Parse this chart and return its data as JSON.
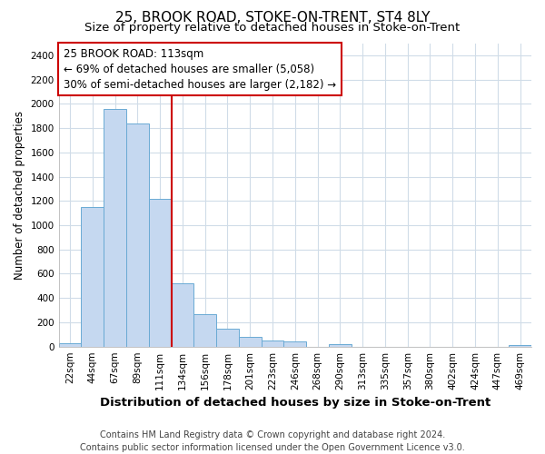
{
  "title": "25, BROOK ROAD, STOKE-ON-TRENT, ST4 8LY",
  "subtitle": "Size of property relative to detached houses in Stoke-on-Trent",
  "xlabel": "Distribution of detached houses by size in Stoke-on-Trent",
  "ylabel": "Number of detached properties",
  "bar_labels": [
    "22sqm",
    "44sqm",
    "67sqm",
    "89sqm",
    "111sqm",
    "134sqm",
    "156sqm",
    "178sqm",
    "201sqm",
    "223sqm",
    "246sqm",
    "268sqm",
    "290sqm",
    "313sqm",
    "335sqm",
    "357sqm",
    "380sqm",
    "402sqm",
    "424sqm",
    "447sqm",
    "469sqm"
  ],
  "bar_values": [
    28,
    1150,
    1960,
    1840,
    1220,
    520,
    265,
    150,
    80,
    50,
    42,
    0,
    18,
    0,
    0,
    0,
    0,
    0,
    0,
    0,
    12
  ],
  "bar_color": "#c5d8f0",
  "bar_edge_color": "#6aaad4",
  "vline_x_idx": 4,
  "vline_color": "#cc0000",
  "annotation_line1": "25 BROOK ROAD: 113sqm",
  "annotation_line2": "← 69% of detached houses are smaller (5,058)",
  "annotation_line3": "30% of semi-detached houses are larger (2,182) →",
  "ylim": [
    0,
    2500
  ],
  "yticks": [
    0,
    200,
    400,
    600,
    800,
    1000,
    1200,
    1400,
    1600,
    1800,
    2000,
    2200,
    2400
  ],
  "footnote": "Contains HM Land Registry data © Crown copyright and database right 2024.\nContains public sector information licensed under the Open Government Licence v3.0.",
  "background_color": "#ffffff",
  "ax_background_color": "#ffffff",
  "grid_color": "#d0dce8",
  "title_fontsize": 11,
  "subtitle_fontsize": 9.5,
  "xlabel_fontsize": 9.5,
  "ylabel_fontsize": 8.5,
  "tick_fontsize": 7.5,
  "annotation_fontsize": 8.5,
  "footnote_fontsize": 7
}
